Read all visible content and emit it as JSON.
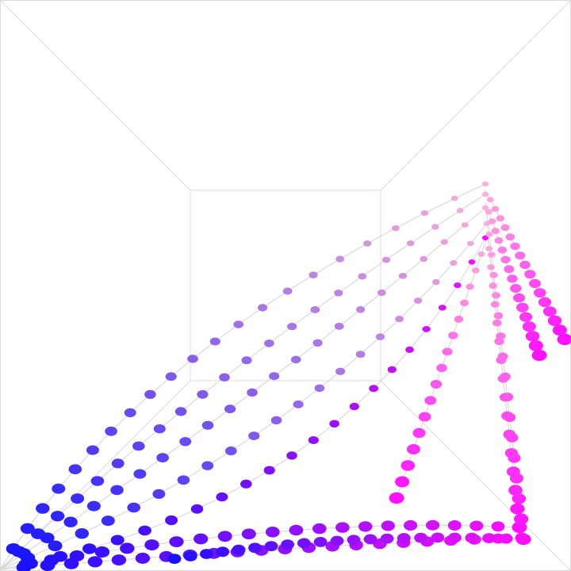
{
  "scene": {
    "grid_rows": 5,
    "grid_cols": 5,
    "points_per_edge": 10,
    "color_near_left": "#1010ff",
    "color_near_right": "#ff10ff",
    "color_far_left": "#5b6ff0",
    "color_far_right": "#ffb0d8",
    "edge_color": "#d6d6d6",
    "guide_color": "#dcdcdc",
    "background": "#ffffff"
  }
}
